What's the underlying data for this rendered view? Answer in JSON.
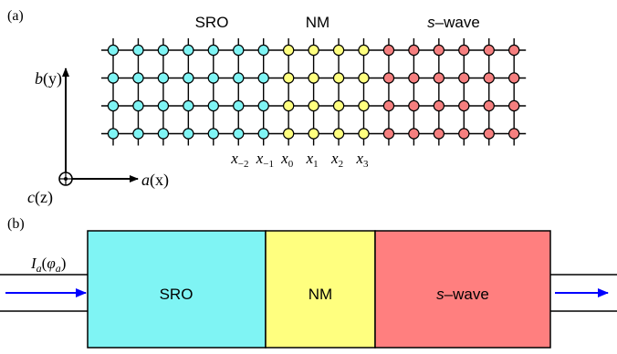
{
  "panel_a": {
    "label": "(a)",
    "region_titles": {
      "sro": "SRO",
      "nm": "NM",
      "swave_italic": "s",
      "swave_rest": "–wave"
    },
    "region_columns": {
      "sro": 7,
      "nm": 4,
      "swave": 6
    },
    "rows": 4,
    "colors": {
      "sro": "#7ff4f4",
      "nm": "#ffff7f",
      "swave": "#f57f7f"
    },
    "x_labels": [
      {
        "base": "x",
        "sub": "−2"
      },
      {
        "base": "x",
        "sub": "−1"
      },
      {
        "base": "x",
        "sub": "0"
      },
      {
        "base": "x",
        "sub": "1"
      },
      {
        "base": "x",
        "sub": "2"
      },
      {
        "base": "x",
        "sub": "3"
      }
    ],
    "axes": {
      "b_label": "b",
      "b_paren": "(y)",
      "a_label": "a",
      "a_paren": "(x)",
      "c_label": "c",
      "c_paren": "(z)"
    }
  },
  "panel_b": {
    "label": "(b)",
    "current_label_base": "I",
    "current_label_sub": "a",
    "current_label_phase": "φ",
    "current_label_phase_sub": "a",
    "blocks": {
      "sro": "SRO",
      "nm": "NM",
      "swave_italic": "s",
      "swave_rest": "–wave"
    },
    "colors": {
      "sro": "#7ff4f4",
      "nm": "#ffff7f",
      "swave": "#ff7f7f",
      "arrow": "#0000ff"
    }
  }
}
